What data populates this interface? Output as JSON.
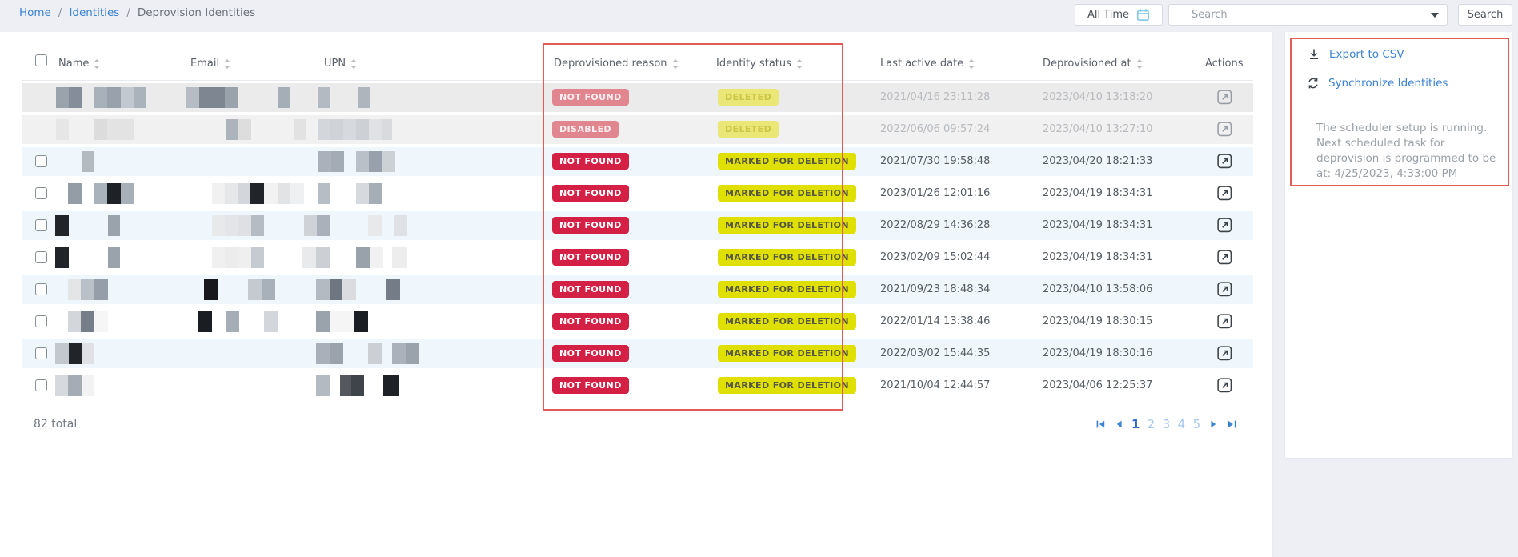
{
  "colors": {
    "accent_blue": "#3a82d2",
    "badge_red": "#d42045",
    "badge_yellow": "#e0e000",
    "annotation_red": "#e25b54",
    "pagination_active": "#2f66c9"
  },
  "breadcrumb": {
    "separator": "/",
    "items": [
      {
        "label": "Home"
      },
      {
        "label": "Identities"
      },
      {
        "label": "Deprovision Identities"
      }
    ]
  },
  "topbar": {
    "time_filter_label": "All Time",
    "search_placeholder": "Search",
    "search_button_label": "Search"
  },
  "table": {
    "columns": [
      {
        "label": "Name",
        "sortable": true
      },
      {
        "label": "Email",
        "sortable": true
      },
      {
        "label": "UPN",
        "sortable": true
      },
      {
        "label": "Deprovisioned reason",
        "sortable": true
      },
      {
        "label": "Identity status",
        "sortable": true
      },
      {
        "label": "Last active date",
        "sortable": true
      },
      {
        "label": "Deprovisioned at",
        "sortable": true
      },
      {
        "label": "Actions",
        "sortable": false
      }
    ],
    "rows": [
      {
        "bg": "gray1",
        "deleted": true,
        "checkbox": false,
        "reason": "NOT FOUND",
        "reason_style": "badge-red-muted",
        "status": "DELETED",
        "status_style": "badge-yellow-muted",
        "last_active": "2021/04/16 23:11:28",
        "deprovisioned_at": "2023/04/10 13:18:20",
        "redactions": [
          [
            70,
            16,
            "#9aa2ac"
          ],
          [
            86,
            16,
            "#848d99"
          ],
          [
            118,
            16,
            "#a8b0ba"
          ],
          [
            134,
            17,
            "#98a1ac"
          ],
          [
            151,
            16,
            "#c2c8cf"
          ],
          [
            167,
            16,
            "#aab2bb"
          ],
          [
            233,
            16,
            "#b6bcc4"
          ],
          [
            249,
            32,
            "#7e8791"
          ],
          [
            281,
            16,
            "#9aa2ab"
          ],
          [
            347,
            16,
            "#a5adb6"
          ],
          [
            397,
            16,
            "#b4bac2"
          ],
          [
            447,
            16,
            "#aeb5bd"
          ]
        ]
      },
      {
        "bg": "gray2",
        "deleted": true,
        "checkbox": false,
        "reason": "DISABLED",
        "reason_style": "badge-red-muted",
        "status": "DELETED",
        "status_style": "badge-yellow-muted",
        "last_active": "2022/06/06 09:57:24",
        "deprovisioned_at": "2023/04/10 13:27:10",
        "redactions": [
          [
            70,
            16,
            "#e6e6e6"
          ],
          [
            118,
            16,
            "#dcdcdc"
          ],
          [
            134,
            33,
            "#e3e3e3"
          ],
          [
            282,
            16,
            "#adb3bb"
          ],
          [
            298,
            16,
            "#dddddd"
          ],
          [
            367,
            15,
            "#e2e2e2"
          ],
          [
            397,
            16,
            "#d3d6da"
          ],
          [
            413,
            16,
            "#cfd3d8"
          ],
          [
            429,
            16,
            "#d6d9dd"
          ],
          [
            445,
            16,
            "#cdd1d6"
          ],
          [
            461,
            16,
            "#dfe1e4"
          ],
          [
            477,
            13,
            "#d8dade"
          ]
        ]
      },
      {
        "bg": "blue",
        "deleted": false,
        "checkbox": true,
        "reason": "NOT FOUND",
        "reason_style": "badge-red",
        "status": "MARKED FOR DELETION",
        "status_style": "badge-yellow",
        "last_active": "2021/07/30 19:58:48",
        "deprovisioned_at": "2023/04/20 18:21:33",
        "redactions": [
          [
            102,
            16,
            "#b3bac2"
          ],
          [
            397,
            17,
            "#aab1ba"
          ],
          [
            414,
            16,
            "#a3abb4"
          ],
          [
            445,
            16,
            "#b9c0c7"
          ],
          [
            461,
            16,
            "#98a1ab"
          ],
          [
            477,
            16,
            "#ccd1d6"
          ]
        ]
      },
      {
        "bg": "white",
        "deleted": false,
        "checkbox": true,
        "reason": "NOT FOUND",
        "reason_style": "badge-red",
        "status": "MARKED FOR DELETION",
        "status_style": "badge-yellow",
        "last_active": "2023/01/26 12:01:16",
        "deprovisioned_at": "2023/04/19 18:34:31",
        "redactions": [
          [
            85,
            17,
            "#949ca6"
          ],
          [
            118,
            16,
            "#a9b1ba"
          ],
          [
            134,
            17,
            "#1e2125"
          ],
          [
            151,
            16,
            "#a7afb8"
          ],
          [
            265,
            16,
            "#f1f1f1"
          ],
          [
            281,
            17,
            "#e6e7e9"
          ],
          [
            298,
            15,
            "#d3d6da"
          ],
          [
            313,
            17,
            "#212428"
          ],
          [
            330,
            17,
            "#f2f2f2"
          ],
          [
            347,
            16,
            "#e2e3e5"
          ],
          [
            363,
            17,
            "#eff0f1"
          ],
          [
            397,
            16,
            "#b7bdc5"
          ],
          [
            445,
            16,
            "#d6d9dd"
          ],
          [
            461,
            16,
            "#a5adb6"
          ]
        ]
      },
      {
        "bg": "blue",
        "deleted": false,
        "checkbox": true,
        "reason": "NOT FOUND",
        "reason_style": "badge-red",
        "status": "MARKED FOR DELETION",
        "status_style": "badge-yellow",
        "last_active": "2022/08/29 14:36:28",
        "deprovisioned_at": "2023/04/19 18:34:31",
        "redactions": [
          [
            69,
            17,
            "#212428"
          ],
          [
            135,
            15,
            "#9aa2ac"
          ],
          [
            265,
            16,
            "#e7e9eb"
          ],
          [
            281,
            17,
            "#e3e5e8"
          ],
          [
            298,
            16,
            "#dee0e3"
          ],
          [
            314,
            16,
            "#b6bcc4"
          ],
          [
            380,
            16,
            "#cfd3d8"
          ],
          [
            396,
            16,
            "#aab1ba"
          ],
          [
            460,
            17,
            "#e8e9eb"
          ],
          [
            492,
            16,
            "#dfe1e4"
          ]
        ]
      },
      {
        "bg": "white",
        "deleted": false,
        "checkbox": true,
        "reason": "NOT FOUND",
        "reason_style": "badge-red",
        "status": "MARKED FOR DELETION",
        "status_style": "badge-yellow",
        "last_active": "2023/02/09 15:02:44",
        "deprovisioned_at": "2023/04/19 18:34:31",
        "redactions": [
          [
            69,
            17,
            "#212428"
          ],
          [
            135,
            15,
            "#9aa2ac"
          ],
          [
            265,
            16,
            "#f0f0f0"
          ],
          [
            281,
            17,
            "#ececec"
          ],
          [
            298,
            16,
            "#efefef"
          ],
          [
            314,
            16,
            "#c6cbd1"
          ],
          [
            378,
            17,
            "#e9eaec"
          ],
          [
            395,
            17,
            "#ccd0d5"
          ],
          [
            445,
            17,
            "#99a2ab"
          ],
          [
            462,
            16,
            "#f1f1f1"
          ],
          [
            490,
            18,
            "#ededed"
          ]
        ]
      },
      {
        "bg": "blue",
        "deleted": false,
        "checkbox": true,
        "reason": "NOT FOUND",
        "reason_style": "badge-red",
        "status": "MARKED FOR DELETION",
        "status_style": "badge-yellow",
        "last_active": "2021/09/23 18:48:34",
        "deprovisioned_at": "2023/04/10 13:58:06",
        "redactions": [
          [
            85,
            16,
            "#e3e5e7"
          ],
          [
            101,
            17,
            "#b9c0c7"
          ],
          [
            118,
            17,
            "#969fa9"
          ],
          [
            255,
            17,
            "#17191d"
          ],
          [
            310,
            17,
            "#c5cad0"
          ],
          [
            327,
            17,
            "#a8b0b9"
          ],
          [
            395,
            17,
            "#b3bac1"
          ],
          [
            412,
            16,
            "#6d7681"
          ],
          [
            428,
            17,
            "#dadce0"
          ],
          [
            482,
            18,
            "#737c87"
          ]
        ]
      },
      {
        "bg": "white",
        "deleted": false,
        "checkbox": true,
        "reason": "NOT FOUND",
        "reason_style": "badge-red",
        "status": "MARKED FOR DELETION",
        "status_style": "badge-yellow",
        "last_active": "2022/01/14 13:38:46",
        "deprovisioned_at": "2023/04/19 18:30:15",
        "redactions": [
          [
            85,
            16,
            "#d3d6da"
          ],
          [
            101,
            17,
            "#757e89"
          ],
          [
            118,
            17,
            "#f6f6f6"
          ],
          [
            248,
            17,
            "#1a1d21"
          ],
          [
            282,
            17,
            "#a5adb6"
          ],
          [
            330,
            18,
            "#d3d6da"
          ],
          [
            395,
            17,
            "#9aa3ac"
          ],
          [
            412,
            31,
            "#f5f5f5"
          ],
          [
            443,
            17,
            "#1a1d21"
          ]
        ]
      },
      {
        "bg": "blue",
        "deleted": false,
        "checkbox": true,
        "reason": "NOT FOUND",
        "reason_style": "badge-red",
        "status": "MARKED FOR DELETION",
        "status_style": "badge-yellow",
        "last_active": "2022/03/02 15:44:35",
        "deprovisioned_at": "2023/04/19 18:30:16",
        "redactions": [
          [
            69,
            17,
            "#c3c8ce"
          ],
          [
            86,
            16,
            "#212428"
          ],
          [
            102,
            16,
            "#dfe1e4"
          ],
          [
            395,
            17,
            "#a9b0b9"
          ],
          [
            412,
            17,
            "#9aa2ac"
          ],
          [
            460,
            17,
            "#ccd0d5"
          ],
          [
            490,
            17,
            "#aab1ba"
          ],
          [
            507,
            17,
            "#9aa2ab"
          ]
        ]
      },
      {
        "bg": "white",
        "deleted": false,
        "checkbox": true,
        "reason": "NOT FOUND",
        "reason_style": "badge-red",
        "status": "MARKED FOR DELETION",
        "status_style": "badge-yellow",
        "last_active": "2021/10/04 12:44:57",
        "deprovisioned_at": "2023/04/06 12:25:37",
        "redactions": [
          [
            69,
            16,
            "#d6d9dd"
          ],
          [
            85,
            17,
            "#a5acb5"
          ],
          [
            102,
            16,
            "#f3f3f3"
          ],
          [
            395,
            17,
            "#b3bac2"
          ],
          [
            425,
            14,
            "#55595f"
          ],
          [
            439,
            16,
            "#3f434a"
          ],
          [
            478,
            20,
            "#1e2125"
          ]
        ]
      }
    ]
  },
  "footer": {
    "total_label": "82 total",
    "pagination": {
      "pages": [
        "1",
        "2",
        "3",
        "4",
        "5"
      ],
      "active": "1"
    }
  },
  "side_panel": {
    "export_label": "Export to CSV",
    "sync_label": "Synchronize Identities",
    "scheduler_note": "The scheduler setup is running. Next scheduled task for deprovision is programmed to be at: 4/25/2023, 4:33:00 PM"
  }
}
